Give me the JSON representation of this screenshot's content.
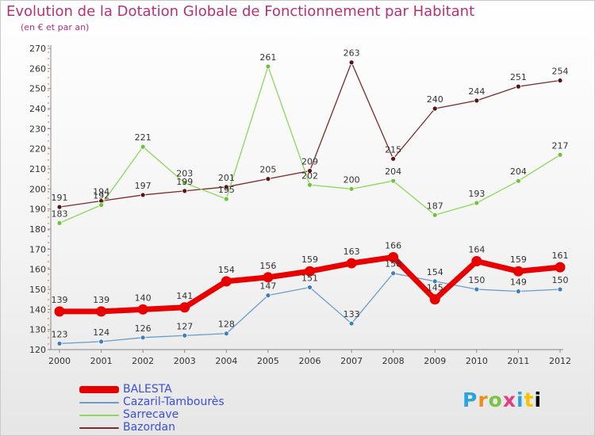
{
  "header": {
    "title": "Evolution de la Dotation Globale de Fonctionnement par Habitant",
    "subtitle": "(en € et par an)"
  },
  "logo": {
    "text": "Proxiti"
  },
  "chart_data": {
    "type": "line",
    "x": [
      2000,
      2001,
      2002,
      2003,
      2004,
      2005,
      2006,
      2007,
      2008,
      2009,
      2010,
      2011,
      2012
    ],
    "ylim": [
      120,
      270
    ],
    "yticks": [
      120,
      130,
      140,
      150,
      160,
      170,
      180,
      190,
      200,
      210,
      220,
      230,
      240,
      250,
      260,
      270
    ],
    "grid": false,
    "legend_position": "bottom-left",
    "series": [
      {
        "name": "BALESTA",
        "color": "#e80000",
        "values": [
          139,
          139,
          140,
          141,
          154,
          156,
          159,
          163,
          166,
          145,
          164,
          159,
          161
        ]
      },
      {
        "name": "Cazaril-Tambourès",
        "color": "#6a9cc9",
        "values": [
          123,
          124,
          126,
          127,
          128,
          147,
          151,
          133,
          158,
          154,
          150,
          149,
          150
        ]
      },
      {
        "name": "Sarrecave",
        "color": "#8ed65c",
        "values": [
          183,
          192,
          221,
          203,
          195,
          261,
          202,
          200,
          204,
          187,
          193,
          204,
          217
        ]
      },
      {
        "name": "Bazordan",
        "color": "#7a2a2a",
        "values": [
          191,
          194,
          197,
          199,
          201,
          205,
          209,
          263,
          215,
          240,
          244,
          251,
          254
        ]
      }
    ]
  }
}
